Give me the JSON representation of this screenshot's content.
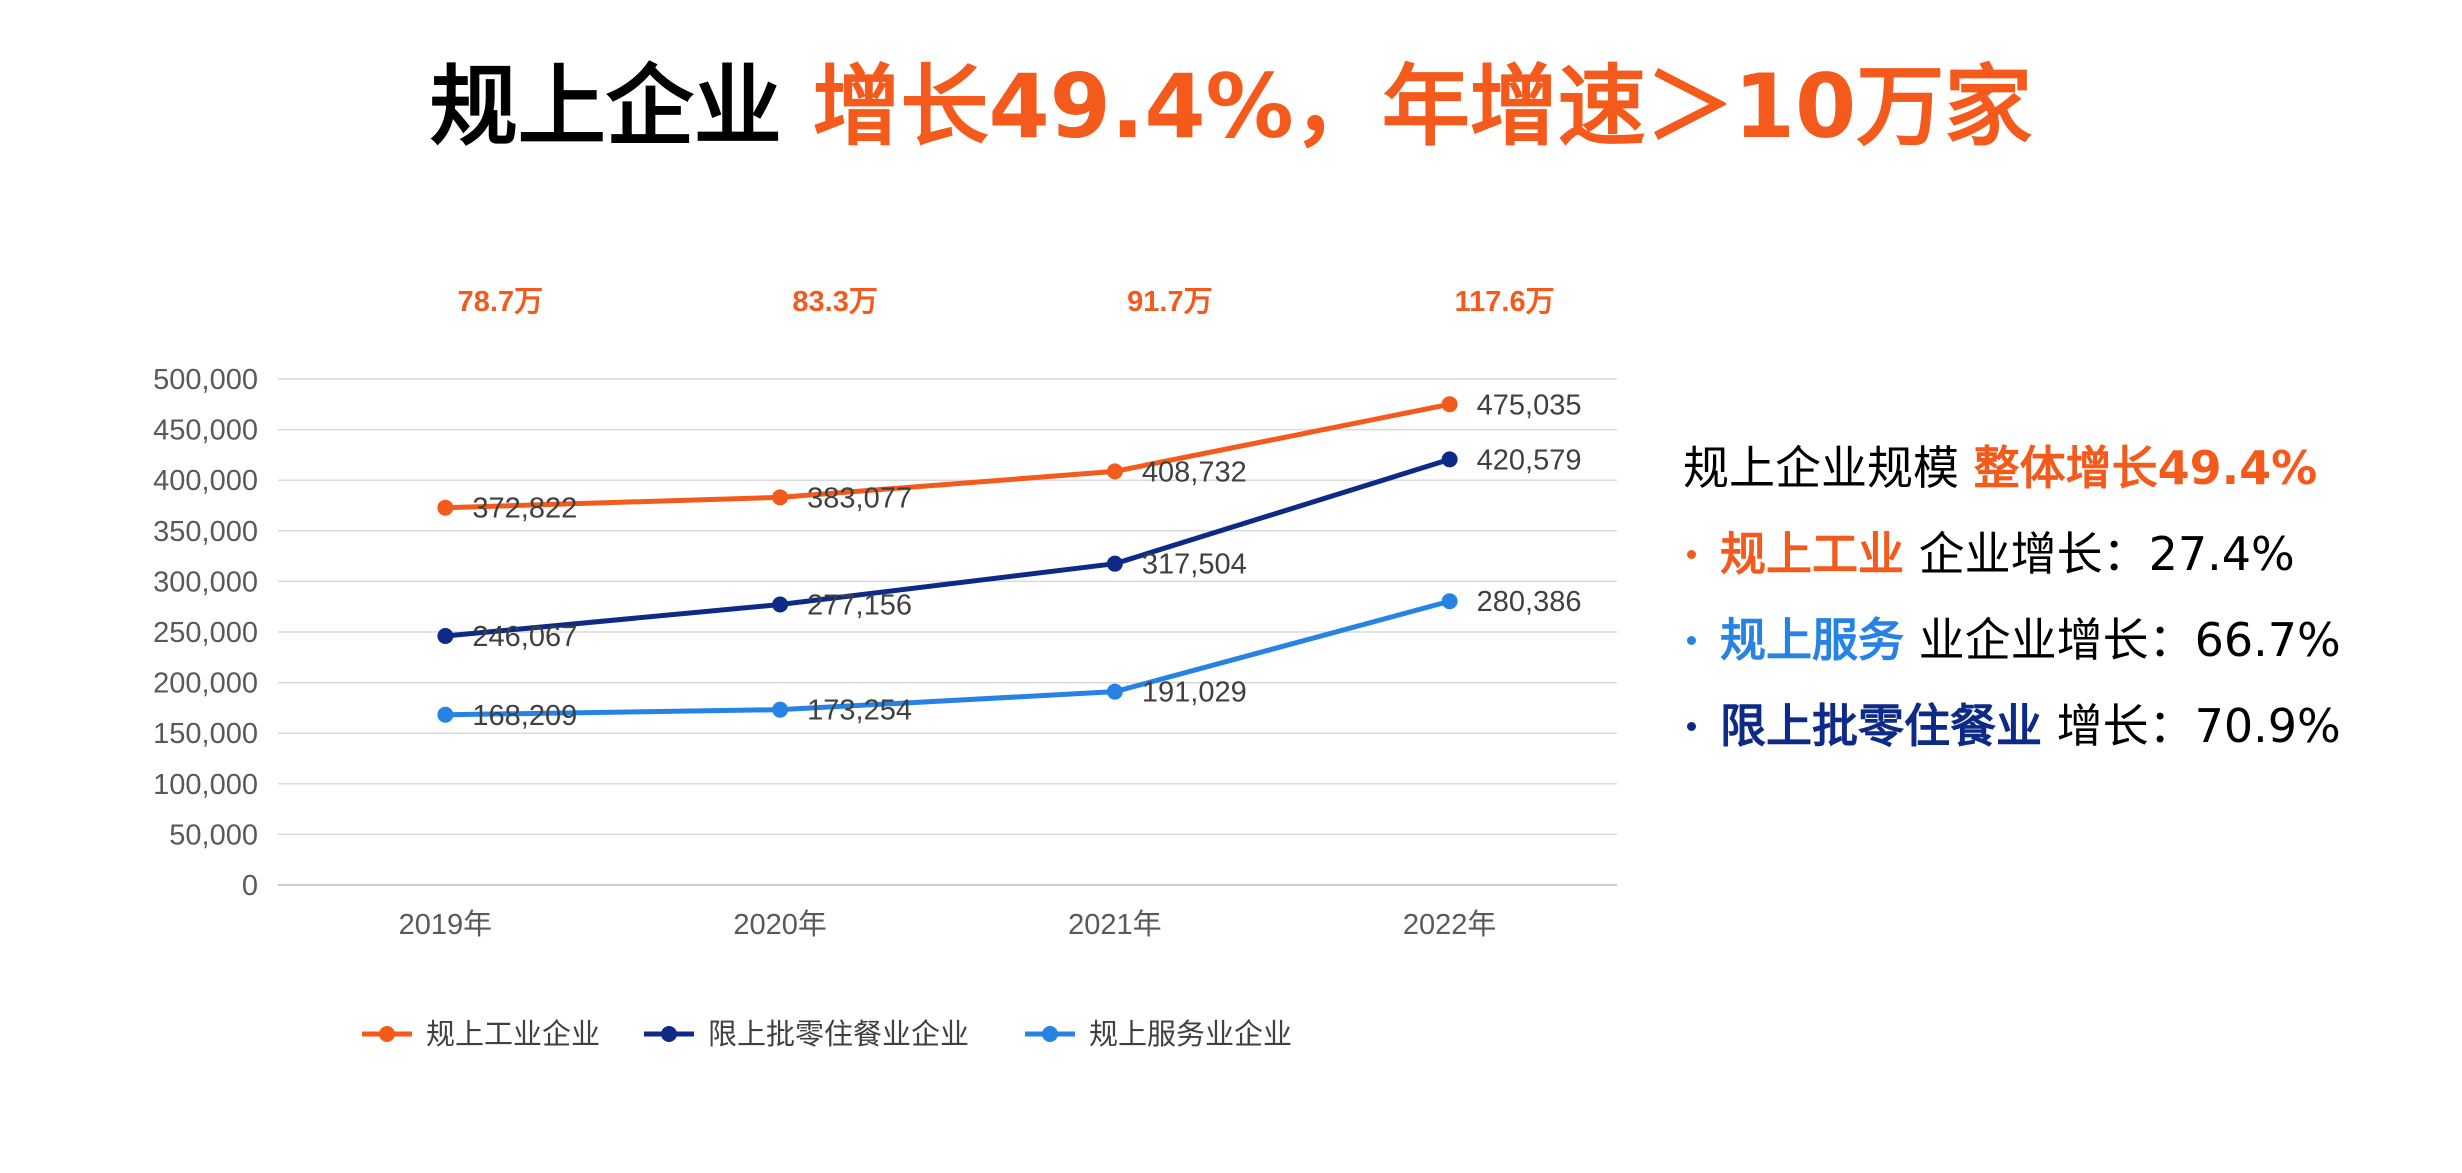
{
  "title": {
    "part1": "规上企业 ",
    "part2": "增长49.4%，年增速＞10万家"
  },
  "colors": {
    "orange": "#f35a1b",
    "navy": "#0d2a87",
    "lightblue": "#2683e4",
    "grid": "#d9d9d9",
    "text": "#595959"
  },
  "chart_data": {
    "type": "line",
    "categories": [
      "2019年",
      "2020年",
      "2021年",
      "2022年"
    ],
    "ylim": [
      0,
      500000
    ],
    "yticks": [
      "0",
      "50,000",
      "100,000",
      "150,000",
      "200,000",
      "250,000",
      "300,000",
      "350,000",
      "400,000",
      "450,000",
      "500,000"
    ],
    "grid": true,
    "legend_position": "bottom",
    "totals": [
      "78.7万",
      "83.3万",
      "91.7万",
      "117.6万"
    ],
    "series": [
      {
        "name": "规上工业企业",
        "color": "#f35a1b",
        "values": [
          372822,
          383077,
          408732,
          475035
        ],
        "labels": [
          "372,822",
          "383,077",
          "408,732",
          "475,035"
        ]
      },
      {
        "name": "限上批零住餐业企业",
        "color": "#0d2a87",
        "values": [
          246067,
          277156,
          317504,
          420579
        ],
        "labels": [
          "246,067",
          "277,156",
          "317,504",
          "420,579"
        ]
      },
      {
        "name": "规上服务业企业",
        "color": "#2683e4",
        "values": [
          168209,
          173254,
          191029,
          280386
        ],
        "labels": [
          "168,209",
          "173,254",
          "191,029",
          "280,386"
        ]
      }
    ]
  },
  "summary": {
    "heading_plain": "规上企业规模 ",
    "heading_highlight": "整体增长49.4%",
    "items": [
      {
        "highlight": "规上工业",
        "rest": " 企业增长：27.4%",
        "color": "#f35a1b"
      },
      {
        "highlight": "规上服务",
        "rest": " 业企业增长：66.7%",
        "color": "#2683e4"
      },
      {
        "highlight": "限上批零住餐业",
        "rest": " 增长：70.9%",
        "color": "#0d2a87"
      }
    ]
  }
}
